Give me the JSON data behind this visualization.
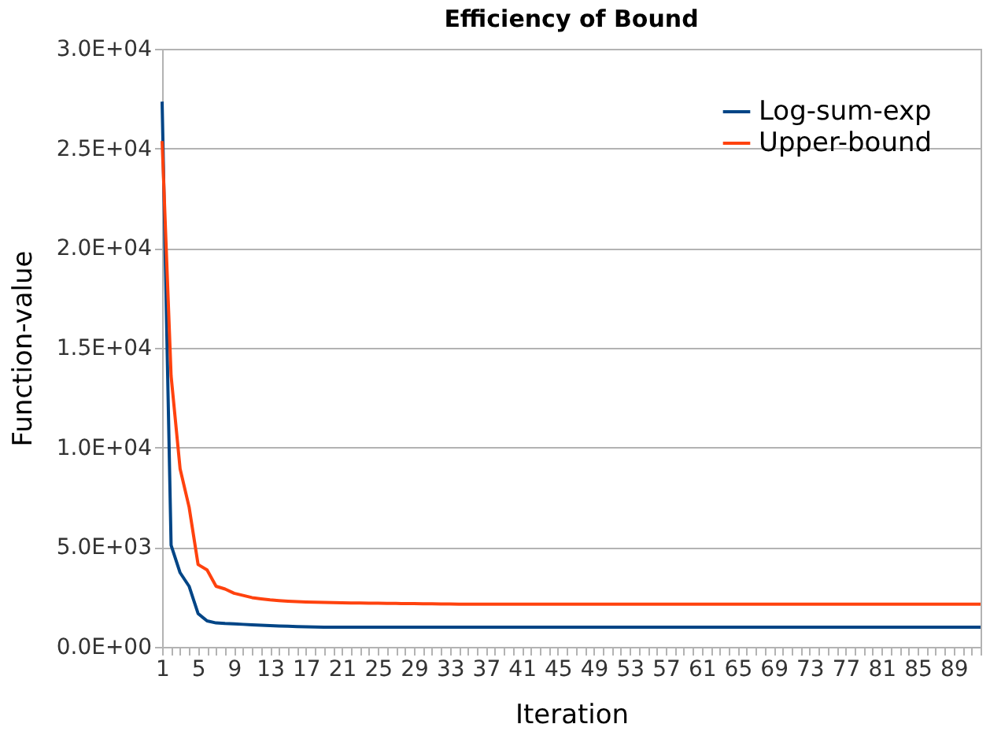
{
  "chart_data": {
    "type": "line",
    "title": "Efficiency of Bound",
    "xlabel": "Iteration",
    "ylabel": "Function-value",
    "categories": [
      "1",
      null,
      null,
      null,
      "5",
      null,
      null,
      null,
      "9",
      null,
      null,
      null,
      "13",
      null,
      null,
      null,
      "17",
      null,
      null,
      null,
      "21",
      null,
      null,
      null,
      "25",
      null,
      null,
      null,
      "29",
      null,
      null,
      null,
      "33",
      null,
      null,
      null,
      "37",
      null,
      null,
      null,
      "41",
      null,
      null,
      null,
      "45",
      null,
      null,
      null,
      "49",
      null,
      null,
      null,
      "53",
      null,
      null,
      null,
      "57",
      null,
      null,
      null,
      "61",
      null,
      null,
      null,
      "65",
      null,
      null,
      null,
      "69",
      null,
      null,
      null,
      "73",
      null,
      null,
      null,
      "77",
      null,
      null,
      null,
      "81",
      null,
      null,
      null,
      "85",
      null,
      null,
      null,
      "89",
      null,
      null,
      null
    ],
    "series": [
      {
        "name": "Log-sum-exp",
        "color": "#004586",
        "values": [
          27350,
          5100,
          3720,
          3040,
          1670,
          1300,
          1200,
          1170,
          1150,
          1130,
          1110,
          1090,
          1070,
          1050,
          1040,
          1020,
          1010,
          1000,
          990,
          990,
          990,
          990,
          990,
          990,
          990,
          990,
          990,
          990,
          990,
          990,
          990,
          990,
          990,
          990,
          990,
          990,
          990,
          990,
          990,
          990,
          990,
          990,
          990,
          990,
          990,
          990,
          990,
          990,
          990,
          990,
          990,
          990,
          990,
          990,
          990,
          990,
          990,
          990,
          990,
          990,
          990,
          990,
          990,
          990,
          990,
          990,
          990,
          990,
          990,
          990,
          990,
          990,
          990,
          990,
          990,
          990,
          990,
          990,
          990,
          990,
          990,
          990,
          990,
          990,
          990,
          990,
          990,
          990,
          990,
          990,
          990,
          990
        ]
      },
      {
        "name": "Upper-bound",
        "color": "#ff420e",
        "values": [
          25370,
          13590,
          8930,
          7010,
          4130,
          3860,
          3040,
          2900,
          2690,
          2580,
          2470,
          2410,
          2360,
          2320,
          2290,
          2270,
          2250,
          2240,
          2230,
          2220,
          2210,
          2200,
          2200,
          2190,
          2190,
          2180,
          2180,
          2170,
          2170,
          2160,
          2160,
          2150,
          2150,
          2140,
          2140,
          2140,
          2140,
          2140,
          2140,
          2140,
          2140,
          2140,
          2140,
          2140,
          2140,
          2140,
          2140,
          2140,
          2140,
          2140,
          2140,
          2140,
          2140,
          2140,
          2140,
          2140,
          2140,
          2140,
          2140,
          2140,
          2140,
          2140,
          2140,
          2140,
          2140,
          2140,
          2140,
          2140,
          2140,
          2140,
          2140,
          2140,
          2140,
          2140,
          2140,
          2140,
          2140,
          2140,
          2140,
          2140,
          2140,
          2140,
          2140,
          2140,
          2140,
          2140,
          2140,
          2140,
          2140,
          2140,
          2140,
          2140
        ]
      }
    ],
    "ylim": [
      0,
      30000
    ],
    "yticks": [
      {
        "value": 0,
        "label": "0.0E+00"
      },
      {
        "value": 5000,
        "label": "5.0E+03"
      },
      {
        "value": 10000,
        "label": "1.0E+04"
      },
      {
        "value": 15000,
        "label": "1.5E+04"
      },
      {
        "value": 20000,
        "label": "2.0E+04"
      },
      {
        "value": 25000,
        "label": "2.5E+04"
      },
      {
        "value": 30000,
        "label": "3.0E+04"
      }
    ],
    "grid": "y",
    "legend": "top right",
    "marker": "none",
    "line_style": "solid"
  }
}
